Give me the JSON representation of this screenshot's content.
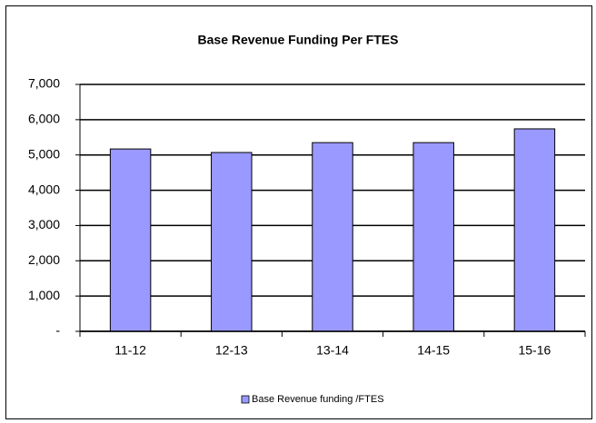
{
  "chart_data": {
    "type": "bar",
    "title": "Base Revenue Funding Per FTES",
    "categories": [
      "11-12",
      "12-13",
      "13-14",
      "14-15",
      "15-16"
    ],
    "series": [
      {
        "name": "Base Revenue funding /FTES",
        "color": "#9999ff",
        "values": [
          5170,
          5070,
          5350,
          5350,
          5740
        ]
      }
    ],
    "ylim": [
      0,
      7000
    ],
    "yticks": [
      {
        "value": 0,
        "label": "-"
      },
      {
        "value": 1000,
        "label": "1,000"
      },
      {
        "value": 2000,
        "label": "2,000"
      },
      {
        "value": 3000,
        "label": "3,000"
      },
      {
        "value": 4000,
        "label": "4,000"
      },
      {
        "value": 5000,
        "label": "5,000"
      },
      {
        "value": 6000,
        "label": "6,000"
      },
      {
        "value": 7000,
        "label": "7,000"
      }
    ],
    "grid": true,
    "legend": "bottom"
  }
}
